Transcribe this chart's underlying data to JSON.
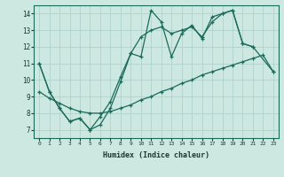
{
  "xlabel": "Humidex (Indice chaleur)",
  "bg_color": "#cce8e0",
  "grid_color": "#aacfc8",
  "line_color": "#1a6b5a",
  "xlim": [
    -0.5,
    23.5
  ],
  "ylim": [
    6.5,
    14.5
  ],
  "s1x": [
    0,
    1,
    2,
    3,
    4,
    5,
    6,
    7,
    8,
    9,
    10,
    11,
    12,
    13,
    14,
    15,
    16,
    17,
    18,
    19,
    20,
    21
  ],
  "s1y": [
    11.0,
    9.3,
    8.3,
    7.5,
    7.7,
    7.0,
    7.3,
    8.3,
    9.9,
    11.6,
    11.4,
    14.2,
    13.5,
    11.4,
    12.8,
    13.3,
    12.5,
    13.8,
    14.0,
    14.2,
    12.2,
    12.0
  ],
  "s2x": [
    0,
    1,
    2,
    3,
    4,
    5,
    6,
    7,
    8,
    9,
    10,
    11,
    12,
    13,
    14,
    15,
    16,
    17,
    18,
    19,
    20,
    21,
    23
  ],
  "s2y": [
    11.0,
    9.3,
    8.3,
    7.5,
    7.7,
    7.0,
    7.8,
    8.7,
    10.2,
    11.6,
    12.6,
    13.0,
    13.2,
    12.8,
    13.0,
    13.2,
    12.6,
    13.5,
    14.0,
    14.2,
    12.2,
    12.0,
    10.5
  ],
  "s3x": [
    0,
    1,
    2,
    3,
    4,
    5,
    6,
    7,
    8,
    9,
    10,
    11,
    12,
    13,
    14,
    15,
    16,
    17,
    18,
    19,
    20,
    21,
    22,
    23
  ],
  "s3y": [
    9.3,
    8.9,
    8.6,
    8.3,
    8.1,
    8.0,
    8.0,
    8.1,
    8.3,
    8.5,
    8.8,
    9.0,
    9.3,
    9.5,
    9.8,
    10.0,
    10.3,
    10.5,
    10.7,
    10.9,
    11.1,
    11.3,
    11.5,
    10.5
  ],
  "yticks": [
    7,
    8,
    9,
    10,
    11,
    12,
    13,
    14
  ],
  "xticks": [
    0,
    1,
    2,
    3,
    4,
    5,
    6,
    7,
    8,
    9,
    10,
    11,
    12,
    13,
    14,
    15,
    16,
    17,
    18,
    19,
    20,
    21,
    22,
    23
  ]
}
